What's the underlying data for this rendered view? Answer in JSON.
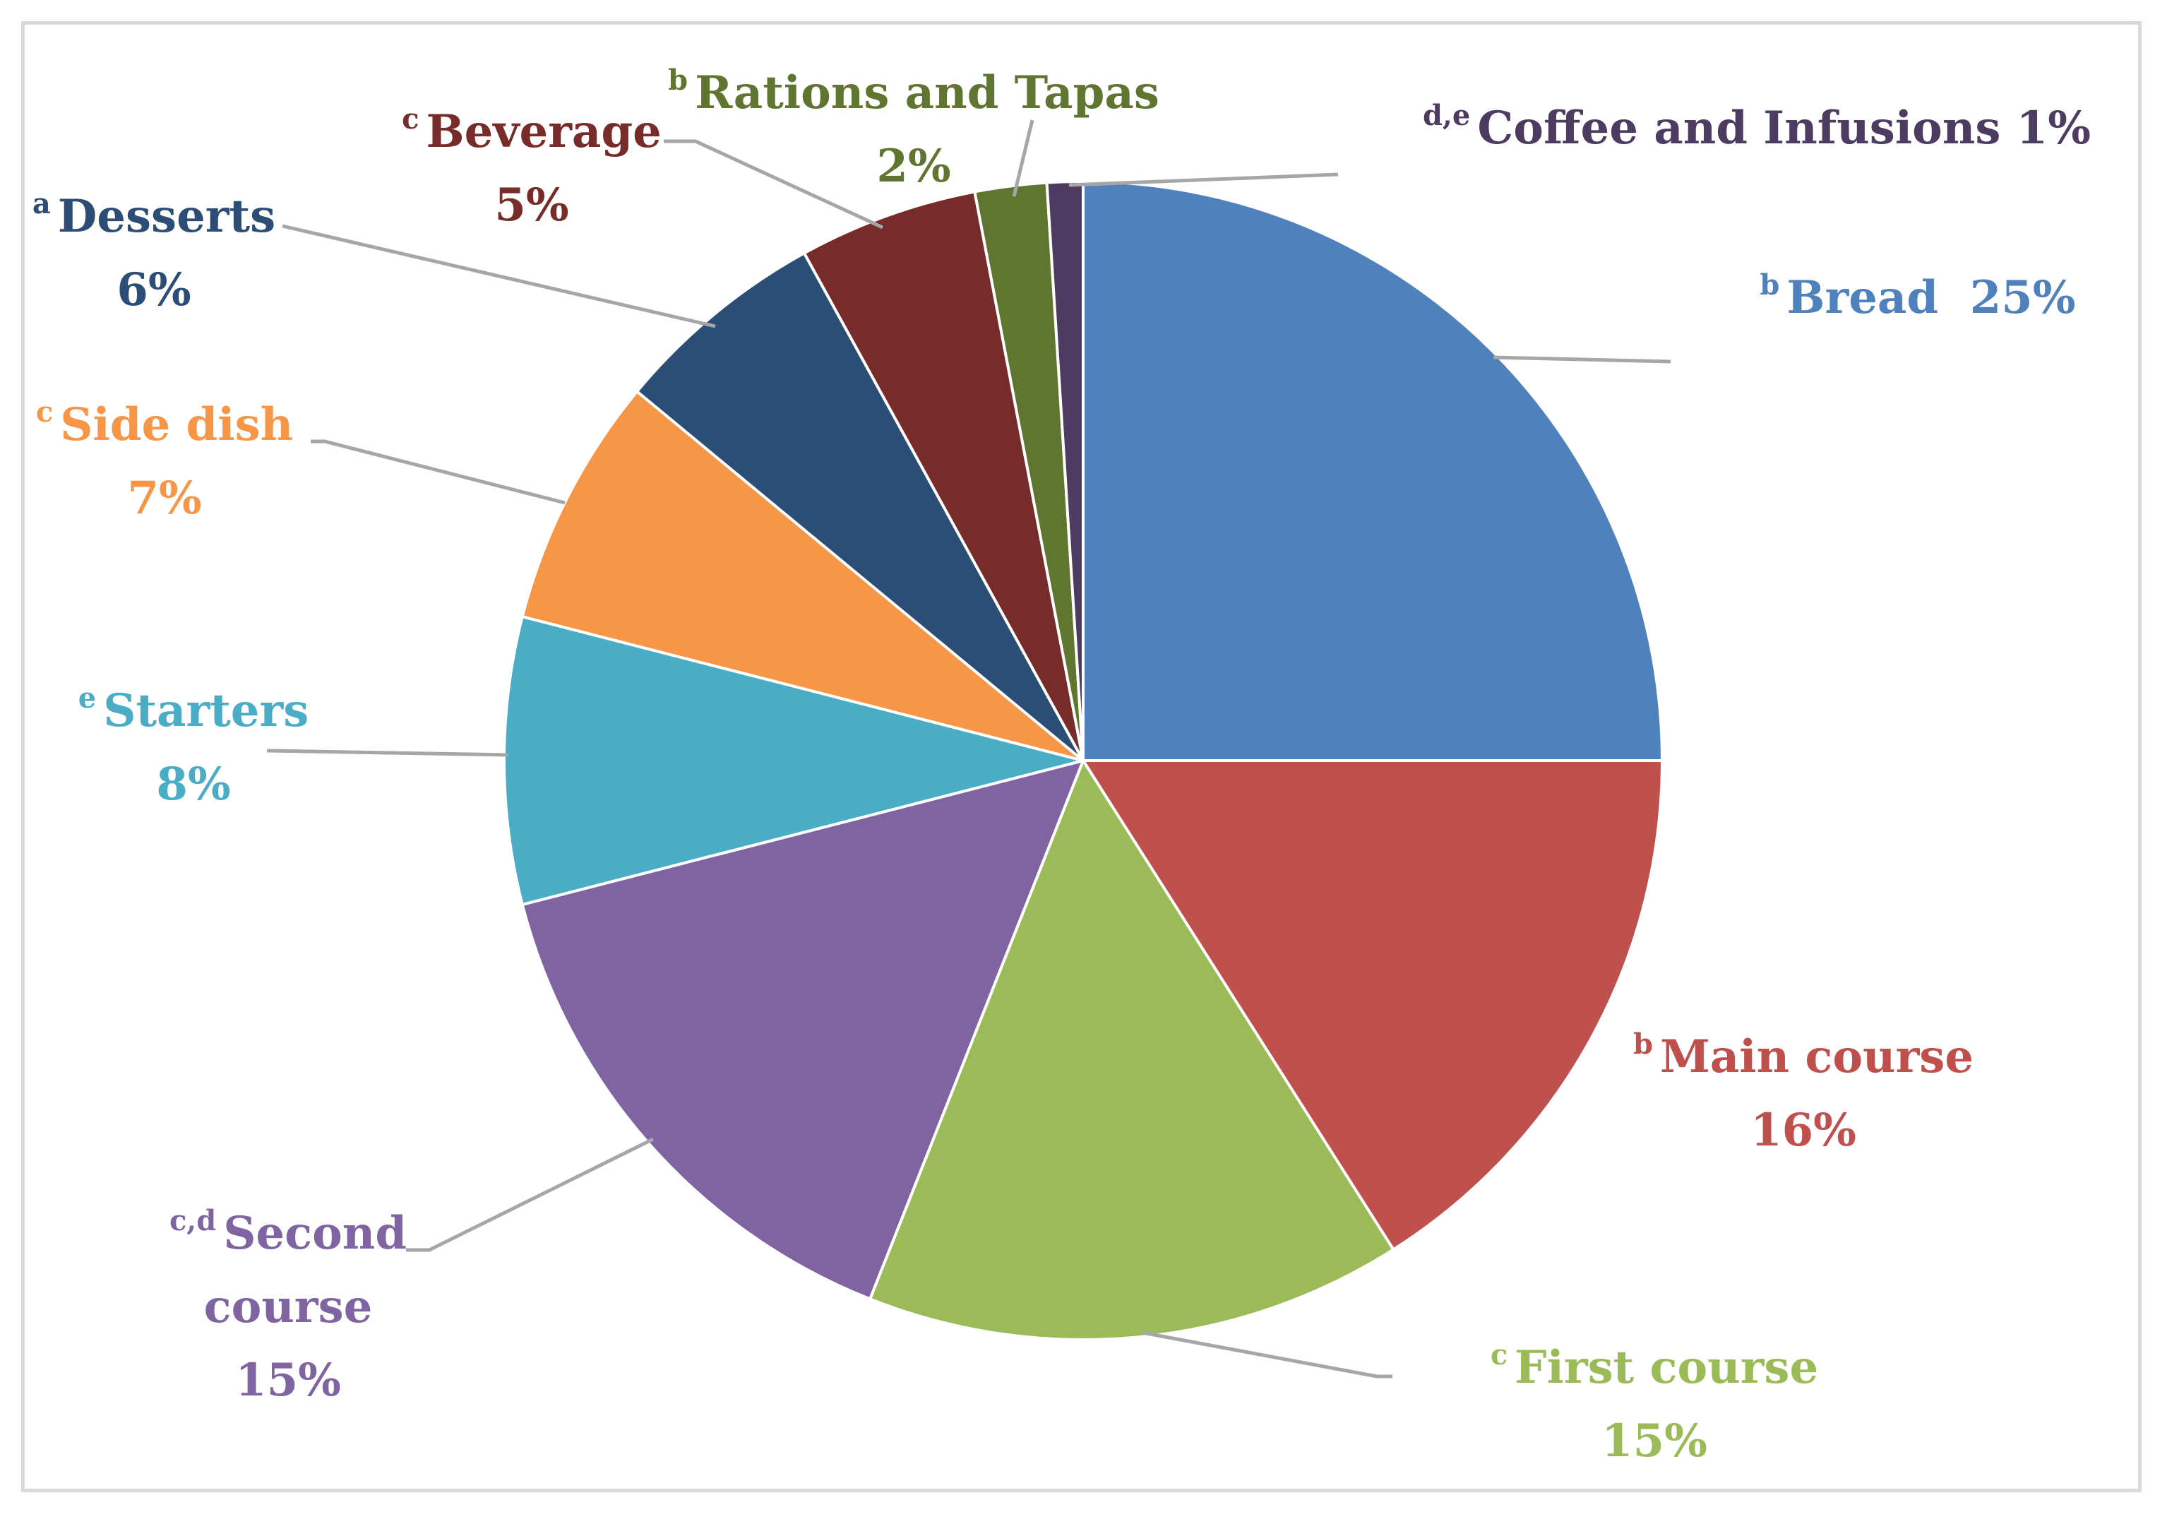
{
  "chart_data": {
    "type": "pie",
    "slices": [
      {
        "label": "Bread",
        "letters": "b",
        "value": 25,
        "value_label": "25%",
        "color": "#4F81BD"
      },
      {
        "label": "Main course",
        "letters": "b",
        "value": 16,
        "value_label": "16%",
        "color": "#C0504D"
      },
      {
        "label": "First course",
        "letters": "c",
        "value": 15,
        "value_label": "15%",
        "color": "#9BBB59"
      },
      {
        "label": "Second course",
        "letters": "c,d",
        "value": 15,
        "value_label": "15%",
        "color": "#8064A2"
      },
      {
        "label": "Starters",
        "letters": "e",
        "value": 8,
        "value_label": "8%",
        "color": "#4BACC6"
      },
      {
        "label": "Side dish",
        "letters": "c",
        "value": 7,
        "value_label": "7%",
        "color": "#F79646"
      },
      {
        "label": "Desserts",
        "letters": "a",
        "value": 6,
        "value_label": "6%",
        "color": "#2C4D75"
      },
      {
        "label": "Beverage",
        "letters": "c",
        "value": 5,
        "value_label": "5%",
        "color": "#772C2A"
      },
      {
        "label": "Rations and Tapas",
        "letters": "b",
        "value": 2,
        "value_label": "2%",
        "color": "#5F7530"
      },
      {
        "label": "Coffee and Infusions",
        "letters": "d,e",
        "value": 1,
        "value_label": "1%",
        "color": "#4D3B62"
      }
    ]
  }
}
